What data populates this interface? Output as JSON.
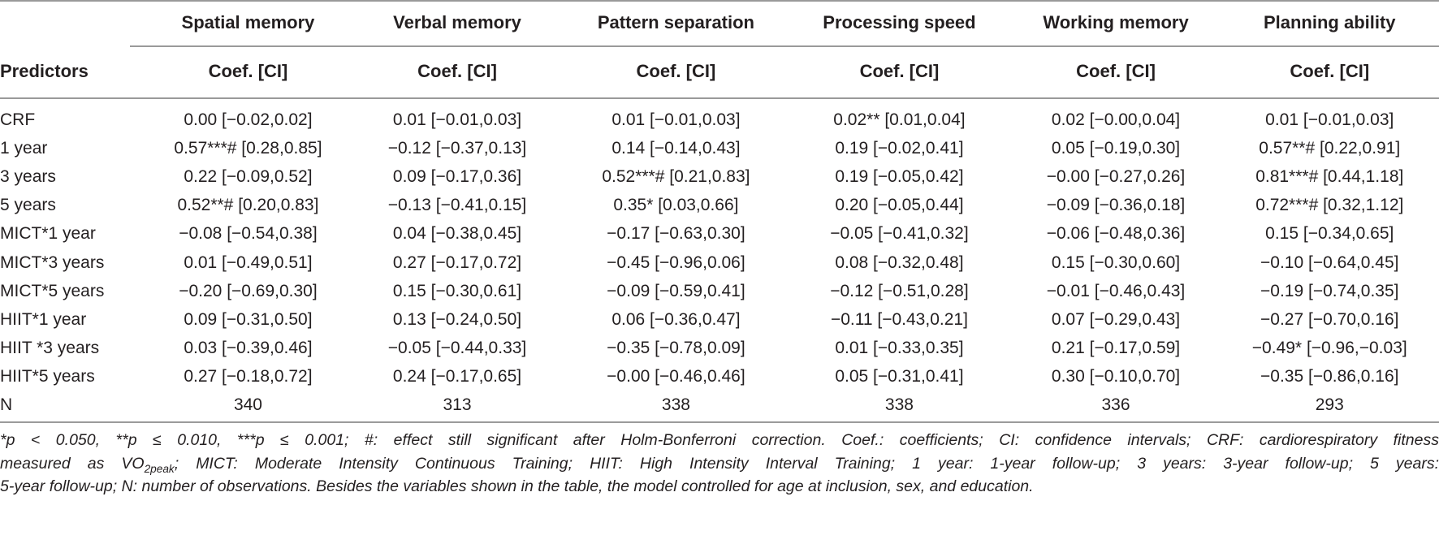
{
  "table": {
    "outcome_headers": [
      "Spatial memory",
      "Verbal memory",
      "Pattern separation",
      "Processing speed",
      "Working memory",
      "Planning ability"
    ],
    "predictors_header": "Predictors",
    "coef_header": "Coef. [CI]",
    "rows": [
      {
        "label": "CRF",
        "cells": [
          "0.00 [−0.02,0.02]",
          "0.01 [−0.01,0.03]",
          "0.01 [−0.01,0.03]",
          "0.02** [0.01,0.04]",
          "0.02 [−0.00,0.04]",
          "0.01 [−0.01,0.03]"
        ]
      },
      {
        "label": "1 year",
        "cells": [
          "0.57***# [0.28,0.85]",
          "−0.12 [−0.37,0.13]",
          "0.14 [−0.14,0.43]",
          "0.19 [−0.02,0.41]",
          "0.05 [−0.19,0.30]",
          "0.57**# [0.22,0.91]"
        ]
      },
      {
        "label": "3 years",
        "cells": [
          "0.22 [−0.09,0.52]",
          "0.09 [−0.17,0.36]",
          "0.52***# [0.21,0.83]",
          "0.19 [−0.05,0.42]",
          "−0.00 [−0.27,0.26]",
          "0.81***# [0.44,1.18]"
        ]
      },
      {
        "label": "5 years",
        "cells": [
          "0.52**# [0.20,0.83]",
          "−0.13 [−0.41,0.15]",
          "0.35* [0.03,0.66]",
          "0.20 [−0.05,0.44]",
          "−0.09 [−0.36,0.18]",
          "0.72***# [0.32,1.12]"
        ]
      },
      {
        "label": "MICT*1 year",
        "cells": [
          "−0.08 [−0.54,0.38]",
          "0.04 [−0.38,0.45]",
          "−0.17 [−0.63,0.30]",
          "−0.05 [−0.41,0.32]",
          "−0.06 [−0.48,0.36]",
          "0.15 [−0.34,0.65]"
        ]
      },
      {
        "label": "MICT*3 years",
        "cells": [
          "0.01 [−0.49,0.51]",
          "0.27 [−0.17,0.72]",
          "−0.45 [−0.96,0.06]",
          "0.08 [−0.32,0.48]",
          "0.15 [−0.30,0.60]",
          "−0.10 [−0.64,0.45]"
        ]
      },
      {
        "label": "MICT*5 years",
        "cells": [
          "−0.20 [−0.69,0.30]",
          "0.15 [−0.30,0.61]",
          "−0.09 [−0.59,0.41]",
          "−0.12 [−0.51,0.28]",
          "−0.01 [−0.46,0.43]",
          "−0.19 [−0.74,0.35]"
        ]
      },
      {
        "label": "HIIT*1 year",
        "cells": [
          "0.09 [−0.31,0.50]",
          "0.13 [−0.24,0.50]",
          "0.06 [−0.36,0.47]",
          "−0.11 [−0.43,0.21]",
          "0.07 [−0.29,0.43]",
          "−0.27 [−0.70,0.16]"
        ]
      },
      {
        "label": "HIIT *3 years",
        "cells": [
          "0.03 [−0.39,0.46]",
          "−0.05 [−0.44,0.33]",
          "−0.35 [−0.78,0.09]",
          "0.01 [−0.33,0.35]",
          "0.21 [−0.17,0.59]",
          "−0.49* [−0.96,−0.03]"
        ]
      },
      {
        "label": "HIIT*5 years",
        "cells": [
          "0.27 [−0.18,0.72]",
          "0.24 [−0.17,0.65]",
          "−0.00 [−0.46,0.46]",
          "0.05 [−0.31,0.41]",
          "0.30 [−0.10,0.70]",
          "−0.35 [−0.86,0.16]"
        ]
      },
      {
        "label": "N",
        "cells": [
          "340",
          "313",
          "338",
          "338",
          "336",
          "293"
        ]
      }
    ]
  },
  "footnote": {
    "line1": "*p < 0.050, **p ≤ 0.010, ***p ≤ 0.001; #: effect still significant after Holm-Bonferroni correction. Coef.: coefficients; CI: confidence intervals; CRF: cardiorespiratory fitness",
    "line2_pre": "measured as VO",
    "line2_sub": "2peak",
    "line2_post": "; MICT: Moderate Intensity Continuous Training; HIIT: High Intensity Interval Training; 1 year: 1-year follow-up; 3 years: 3-year follow-up; 5 years:",
    "line3": "5-year follow-up; N: number of observations. Besides the variables shown in the table, the model controlled for age at inclusion, sex, and education."
  }
}
